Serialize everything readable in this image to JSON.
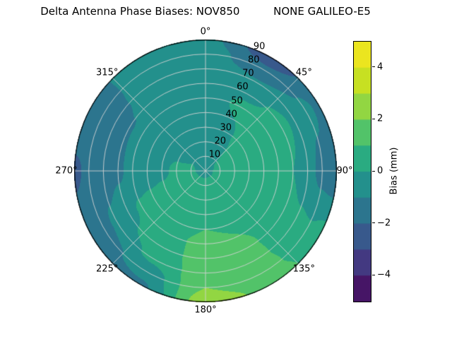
{
  "chart_data": {
    "type": "heatmap",
    "projection": "polar",
    "title": "Delta Antenna Phase Biases: NOV850          NONE GALILEO-E5",
    "colormap": "viridis",
    "vmin": -5,
    "vmax": 5,
    "level_step": 1,
    "colorbar_label": "Bias (mm)",
    "colorbar_ticks": [
      4,
      2,
      0,
      -2,
      -4
    ],
    "colorbar_tick_labels": [
      "4",
      "2",
      "0",
      "−2",
      "−4"
    ],
    "azimuth_ticks_deg": [
      0,
      45,
      90,
      135,
      180,
      225,
      270,
      315
    ],
    "azimuth_tick_labels": [
      "0°",
      "45°",
      "90°",
      "135°",
      "180°",
      "225°",
      "270°",
      "315°"
    ],
    "zenith_ticks": [
      10,
      20,
      30,
      40,
      50,
      60,
      70,
      80,
      90
    ],
    "zenith_tick_labels": [
      "10",
      "20",
      "30",
      "40",
      "50",
      "60",
      "70",
      "80",
      "90"
    ],
    "rlabel_angle_deg": 22.5,
    "grid": {
      "azimuth_deg": [
        0,
        30,
        60,
        90,
        120,
        150,
        180,
        210,
        240,
        270,
        300,
        330
      ],
      "zenith_deg": [
        0,
        10,
        20,
        30,
        40,
        50,
        60,
        70,
        80,
        90
      ],
      "bias_mm": [
        [
          -0.3,
          -0.3,
          -0.3,
          -0.3,
          -0.3,
          -0.3,
          -0.3,
          -0.3,
          -0.3,
          -0.3,
          -0.3,
          -0.3
        ],
        [
          -0.5,
          -0.3,
          0.1,
          0.3,
          0.3,
          0.4,
          0.3,
          0.3,
          0.2,
          0.1,
          0.0,
          -0.4
        ],
        [
          -0.6,
          -0.2,
          0.3,
          0.5,
          0.5,
          0.6,
          0.5,
          0.5,
          0.4,
          0.2,
          -0.1,
          -0.5
        ],
        [
          -0.7,
          -0.1,
          0.5,
          0.6,
          0.6,
          0.8,
          0.8,
          0.6,
          0.3,
          -0.2,
          -0.3,
          -0.6
        ],
        [
          -0.6,
          0.0,
          0.6,
          0.5,
          0.6,
          0.9,
          1.0,
          0.7,
          0.2,
          -0.4,
          -0.4,
          -0.5
        ],
        [
          -0.5,
          0.2,
          0.5,
          0.3,
          0.5,
          1.0,
          1.2,
          0.8,
          0.1,
          -0.6,
          -0.6,
          -0.4
        ],
        [
          -0.4,
          -0.2,
          0.3,
          0.0,
          0.4,
          1.1,
          1.4,
          0.6,
          -0.2,
          -1.2,
          -1.1,
          -0.3
        ],
        [
          -0.3,
          -0.9,
          -0.2,
          -0.6,
          0.2,
          1.2,
          1.6,
          0.2,
          -0.8,
          -1.6,
          -1.4,
          -0.2
        ],
        [
          -0.5,
          -1.8,
          -0.8,
          -1.3,
          0.1,
          1.4,
          2.0,
          -0.6,
          -1.4,
          -1.9,
          -1.5,
          -0.3
        ],
        [
          -0.7,
          -2.6,
          -1.2,
          -1.7,
          0.3,
          1.7,
          2.6,
          -1.2,
          -1.7,
          -2.1,
          -1.4,
          -0.4
        ]
      ]
    }
  },
  "colors": {
    "background": "#ffffff",
    "grid_line": "#d2d2d2",
    "spine": "#000000",
    "viridis_stops": [
      "#440154",
      "#482878",
      "#3e4989",
      "#31688e",
      "#26828e",
      "#1f9e89",
      "#35b779",
      "#6ece58",
      "#b5de2b",
      "#d8e219",
      "#fde725"
    ]
  }
}
